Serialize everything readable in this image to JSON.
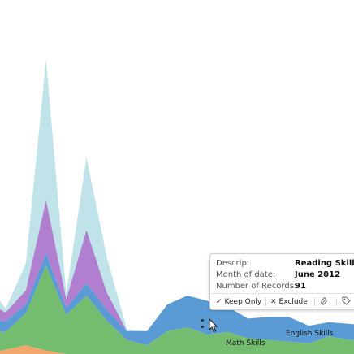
{
  "chart_data": {
    "type": "area",
    "stacked": true,
    "x_positions": [
      0,
      1,
      2,
      3,
      4,
      5,
      6,
      7,
      8,
      9,
      10,
      11,
      12,
      13,
      14,
      15,
      16,
      17,
      18,
      19
    ],
    "series": [
      {
        "name": "",
        "color": "#f2a66b",
        "values": [
          0,
          5,
          10,
          4,
          0,
          0,
          0,
          0,
          0,
          0,
          0,
          0,
          0,
          0,
          0,
          0,
          0,
          0,
          0,
          0
        ]
      },
      {
        "name": "Math Skills",
        "color": "#74bd6f",
        "values": [
          25,
          20,
          36,
          96,
          44,
          66,
          38,
          16,
          10,
          26,
          30,
          22,
          25,
          18,
          16,
          14,
          12,
          20,
          16,
          15
        ]
      },
      {
        "name": "English Skills",
        "color": "#5b9bd5",
        "values": [
          15,
          12,
          10,
          14,
          8,
          14,
          12,
          10,
          16,
          30,
          36,
          38,
          28,
          22,
          26,
          28,
          20,
          16,
          18,
          17
        ]
      },
      {
        "name": "",
        "color": "#b07fcf",
        "values": [
          20,
          10,
          16,
          60,
          10,
          60,
          20,
          0,
          0,
          0,
          0,
          0,
          0,
          0,
          0,
          0,
          0,
          0,
          0,
          0
        ]
      },
      {
        "name": "",
        "color": "#bfe3e8",
        "values": [
          24,
          4,
          30,
          158,
          6,
          82,
          40,
          2,
          0,
          0,
          0,
          0,
          0,
          0,
          0,
          0,
          0,
          0,
          0,
          0
        ]
      }
    ],
    "ylim": [
      0,
      400
    ],
    "grid": false,
    "legend": "none",
    "area_labels": [
      "Math Skills",
      "English Skills"
    ]
  },
  "tooltip": {
    "rows": [
      {
        "key": "Descrip:",
        "value": "Reading Skills"
      },
      {
        "key": "Month of date:",
        "value": "June 2012"
      },
      {
        "key": "Number of Records:",
        "value": "91"
      }
    ],
    "keep_only_label": "Keep Only",
    "exclude_label": "Exclude",
    "keep_only_icon": "checkmark-icon",
    "exclude_icon": "x-icon",
    "action_icons": [
      "paperclip-icon",
      "tag-icon"
    ]
  }
}
